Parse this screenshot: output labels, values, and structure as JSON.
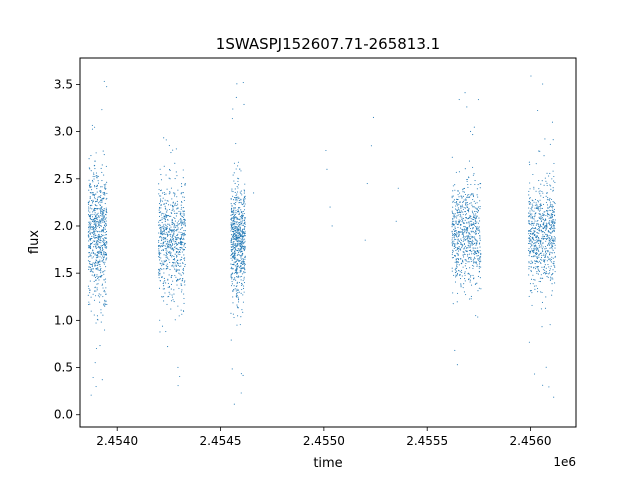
{
  "chart_data": {
    "type": "scatter",
    "title": "1SWASPJ152607.71-265813.1",
    "xlabel": "time",
    "ylabel": "flux",
    "x_offset_label": "1e6",
    "xlim": [
      2453820,
      2456220
    ],
    "ylim": [
      -0.13,
      3.78
    ],
    "x_ticks": [
      2454000,
      2454500,
      2455000,
      2455500,
      2456000
    ],
    "x_tick_labels": [
      "2.4540",
      "2.4545",
      "2.4550",
      "2.4555",
      "2.4560"
    ],
    "y_ticks": [
      0.0,
      0.5,
      1.0,
      1.5,
      2.0,
      2.5,
      3.0,
      3.5
    ],
    "y_tick_labels": [
      "0.0",
      "0.5",
      "1.0",
      "1.5",
      "2.0",
      "2.5",
      "3.0",
      "3.5"
    ],
    "marker_color": "#1f77b4",
    "grid": false,
    "legend": "none",
    "observing_seasons": [
      {
        "x_start": 2453860,
        "x_end": 2453950,
        "flux_center": 1.9,
        "flux_spread": 0.35,
        "flux_min": 0.08,
        "flux_max": 3.62
      },
      {
        "x_start": 2454200,
        "x_end": 2454330,
        "flux_center": 1.85,
        "flux_spread": 0.3,
        "flux_min": 0.3,
        "flux_max": 3.05
      },
      {
        "x_start": 2454550,
        "x_end": 2454620,
        "flux_center": 1.85,
        "flux_spread": 0.3,
        "flux_min": 0.05,
        "flux_max": 3.6
      },
      {
        "x_start": 2455620,
        "x_end": 2455760,
        "flux_center": 1.9,
        "flux_spread": 0.28,
        "flux_min": 0.3,
        "flux_max": 3.62
      },
      {
        "x_start": 2455990,
        "x_end": 2456120,
        "flux_center": 1.9,
        "flux_spread": 0.28,
        "flux_min": 0.05,
        "flux_max": 3.6
      }
    ],
    "sparse_points": [
      {
        "x": 2454660,
        "y": 2.35
      },
      {
        "x": 2455010,
        "y": 2.8
      },
      {
        "x": 2455015,
        "y": 2.6
      },
      {
        "x": 2455030,
        "y": 2.2
      },
      {
        "x": 2455040,
        "y": 2.0
      },
      {
        "x": 2455210,
        "y": 2.45
      },
      {
        "x": 2455230,
        "y": 2.85
      },
      {
        "x": 2455240,
        "y": 3.15
      },
      {
        "x": 2455200,
        "y": 1.85
      },
      {
        "x": 2455350,
        "y": 2.05
      },
      {
        "x": 2455360,
        "y": 2.4
      }
    ]
  }
}
